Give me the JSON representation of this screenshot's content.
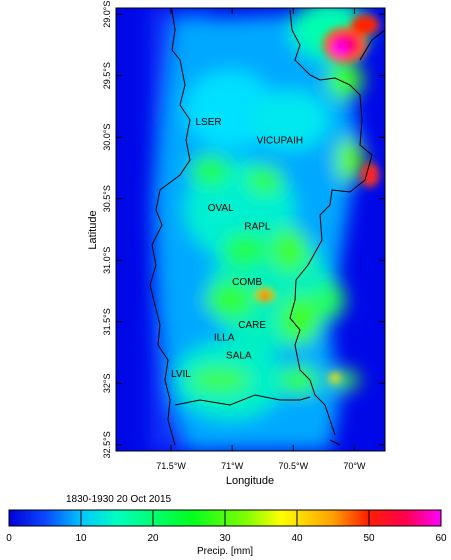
{
  "map": {
    "x_axis_title": "Longitude",
    "y_axis_title": "Latitude",
    "timestamp": "1830-1930 20 Oct 2015",
    "lon_range": [
      -71.95,
      -69.75
    ],
    "lat_range": [
      -32.55,
      -28.95
    ],
    "lon_ticks": [
      {
        "value": -71.5,
        "label": "71.5°W"
      },
      {
        "value": -71.0,
        "label": "71°W"
      },
      {
        "value": -70.5,
        "label": "70.5°W"
      },
      {
        "value": -70.0,
        "label": "70°W"
      }
    ],
    "lat_ticks": [
      {
        "value": -29.0,
        "label": "29.0°S"
      },
      {
        "value": -29.5,
        "label": "29.5°S"
      },
      {
        "value": -30.0,
        "label": "30.0°S"
      },
      {
        "value": -30.5,
        "label": "30.5°S"
      },
      {
        "value": -31.0,
        "label": "31.0°S"
      },
      {
        "value": -31.5,
        "label": "31.5°S"
      },
      {
        "value": -32.0,
        "label": "32°S"
      },
      {
        "value": -32.5,
        "label": "32.5°S"
      }
    ],
    "stations": [
      {
        "label": "LSER",
        "lon": -71.3,
        "lat": -29.9
      },
      {
        "label": "VICUPAIH",
        "lon": -70.8,
        "lat": -30.05
      },
      {
        "label": "OVAL",
        "lon": -71.2,
        "lat": -30.6
      },
      {
        "label": "RAPL",
        "lon": -70.9,
        "lat": -30.75
      },
      {
        "label": "COMB",
        "lon": -71.0,
        "lat": -31.2
      },
      {
        "label": "CARE",
        "lon": -70.95,
        "lat": -31.55
      },
      {
        "label": "ILLA",
        "lon": -71.15,
        "lat": -31.65
      },
      {
        "label": "SALA",
        "lon": -71.05,
        "lat": -31.8
      },
      {
        "label": "LVIL",
        "lon": -71.5,
        "lat": -31.95
      }
    ]
  },
  "colorbar": {
    "title": "Precip. [mm]",
    "min": 0,
    "max": 60,
    "tick_labels": [
      "0",
      "10",
      "20",
      "30",
      "40",
      "50",
      "60"
    ],
    "colors": [
      "#0000d8",
      "#0a46ff",
      "#00c8ff",
      "#00ffc0",
      "#00ff20",
      "#80ff00",
      "#ffff00",
      "#ffa000",
      "#ff2000",
      "#ff0050",
      "#ff00c0",
      "#ff00ff"
    ]
  }
}
